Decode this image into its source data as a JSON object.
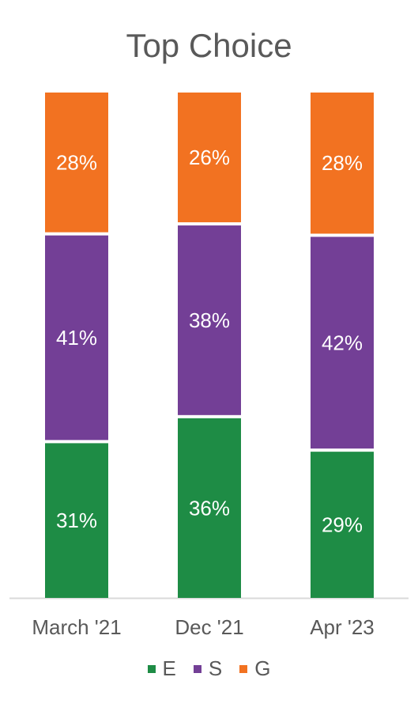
{
  "chart_data": {
    "type": "bar",
    "stacked": true,
    "title": "Top Choice",
    "categories": [
      "March '21",
      "Dec '21",
      "Apr '23"
    ],
    "series": [
      {
        "name": "E",
        "color": "#1e8c45",
        "values": [
          31,
          36,
          29
        ],
        "labels": [
          "31%",
          "36%",
          "29%"
        ]
      },
      {
        "name": "S",
        "color": "#733f96",
        "values": [
          41,
          38,
          42
        ],
        "labels": [
          "41%",
          "38%",
          "42%"
        ]
      },
      {
        "name": "G",
        "color": "#f27221",
        "values": [
          28,
          26,
          28
        ],
        "labels": [
          "28%",
          "26%",
          "28%"
        ]
      }
    ],
    "ylim": [
      0,
      100
    ],
    "grid": false,
    "legend_position": "bottom"
  }
}
